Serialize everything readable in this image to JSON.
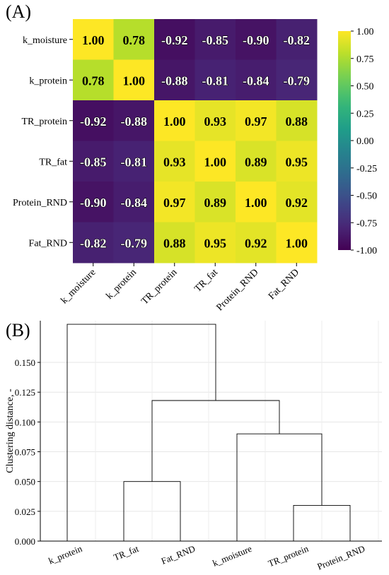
{
  "panel_a_label": "(A)",
  "panel_b_label": "(B)",
  "chart_data": [
    {
      "type": "heatmap",
      "rows": [
        "k_moisture",
        "k_protein",
        "TR_protein",
        "TR_fat",
        "Protein_RND",
        "Fat_RND"
      ],
      "cols": [
        "k_moisture",
        "k_protein",
        "TR_protein",
        "TR_fat",
        "Protein_RND",
        "Fat_RND"
      ],
      "values": [
        [
          1.0,
          0.78,
          -0.92,
          -0.85,
          -0.9,
          -0.82
        ],
        [
          0.78,
          1.0,
          -0.88,
          -0.81,
          -0.84,
          -0.79
        ],
        [
          -0.92,
          -0.88,
          1.0,
          0.93,
          0.97,
          0.88
        ],
        [
          -0.85,
          -0.81,
          0.93,
          1.0,
          0.89,
          0.95
        ],
        [
          -0.9,
          -0.84,
          0.97,
          0.89,
          1.0,
          0.92
        ],
        [
          -0.82,
          -0.79,
          0.88,
          0.95,
          0.92,
          1.0
        ]
      ],
      "value_labels": [
        [
          "1.00",
          "0.78",
          "-0.92",
          "-0.85",
          "-0.90",
          "-0.82"
        ],
        [
          "0.78",
          "1.00",
          "-0.88",
          "-0.81",
          "-0.84",
          "-0.79"
        ],
        [
          "-0.92",
          "-0.88",
          "1.00",
          "0.93",
          "0.97",
          "0.88"
        ],
        [
          "-0.85",
          "-0.81",
          "0.93",
          "1.00",
          "0.89",
          "0.95"
        ],
        [
          "-0.90",
          "-0.84",
          "0.97",
          "0.89",
          "1.00",
          "0.92"
        ],
        [
          "-0.82",
          "-0.79",
          "0.88",
          "0.95",
          "0.92",
          "1.00"
        ]
      ],
      "colormap": "viridis",
      "vmin": -1.0,
      "vmax": 1.0,
      "colorbar_ticks": [
        "1.00",
        "0.75",
        "0.50",
        "0.25",
        "0.00",
        "-0.25",
        "-0.50",
        "-0.75",
        "-1.00"
      ]
    },
    {
      "type": "dendrogram",
      "leaves": [
        "k_protein",
        "TR_fat",
        "Fat_RND",
        "k_moisture",
        "TR_protein",
        "Protein_RND"
      ],
      "ylabel": "Clustering distance, -",
      "ylim": [
        0,
        0.185
      ],
      "yticks": [
        "0.000",
        "0.025",
        "0.050",
        "0.075",
        "0.100",
        "0.125",
        "0.150"
      ],
      "grid": true,
      "merges": [
        {
          "a": "TR_fat",
          "b": "Fat_RND",
          "height": 0.05
        },
        {
          "a": "TR_protein",
          "b": "Protein_RND",
          "height": 0.03
        },
        {
          "a": "k_moisture",
          "b": "[TR_protein, Protein_RND]",
          "height": 0.09
        },
        {
          "a": "[TR_fat, Fat_RND]",
          "b": "[k_moisture, TR_protein, Protein_RND]",
          "height": 0.118
        },
        {
          "a": "k_protein",
          "b": "[TR_fat, Fat_RND, k_moisture, TR_protein, Protein_RND]",
          "height": 0.182
        }
      ]
    }
  ]
}
